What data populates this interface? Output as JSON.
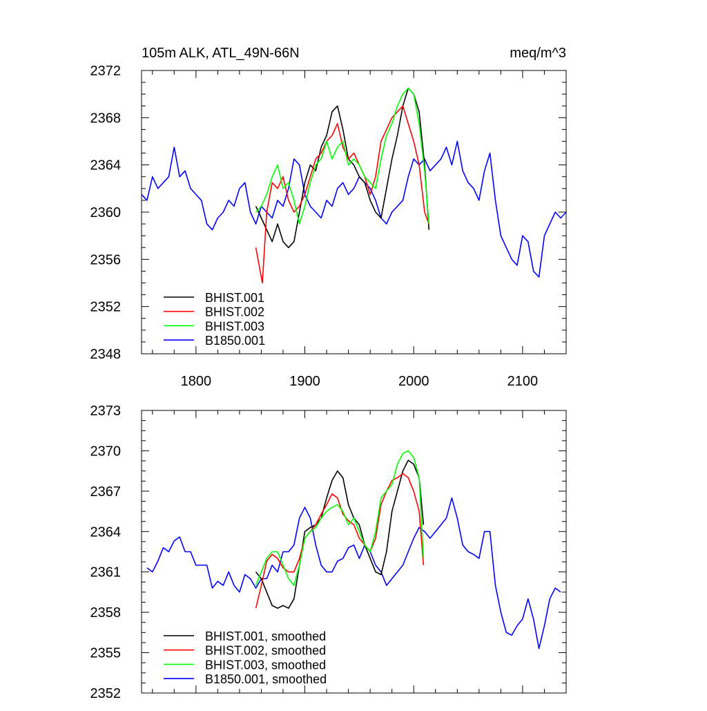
{
  "chart_data": [
    {
      "type": "line",
      "title_left": "105m ALK, ATL_49N-66N",
      "title_right": "meq/m^3",
      "xlim": [
        1750,
        2140
      ],
      "ylim": [
        2348,
        2372
      ],
      "xticks": [
        1800,
        1900,
        2000,
        2100
      ],
      "xtick_labels": [
        "1800",
        "1900",
        "2000",
        "2100"
      ],
      "yticks": [
        2348,
        2352,
        2356,
        2360,
        2364,
        2368,
        2372
      ],
      "ytick_labels": [
        "2348",
        "2352",
        "2356",
        "2360",
        "2364",
        "2368",
        "2372"
      ],
      "legend": "bottom-left",
      "series": [
        {
          "name": "BHIST.001",
          "color": "#000000",
          "x": [
            1855,
            1860,
            1865,
            1870,
            1875,
            1880,
            1885,
            1890,
            1895,
            1900,
            1905,
            1910,
            1915,
            1920,
            1925,
            1930,
            1935,
            1940,
            1945,
            1950,
            1955,
            1960,
            1965,
            1970,
            1975,
            1980,
            1985,
            1990,
            1995,
            2000,
            2005,
            2010,
            2014
          ],
          "y": [
            2360.5,
            2359.5,
            2358.5,
            2357.5,
            2359,
            2357.5,
            2357,
            2357.5,
            2360,
            2362.5,
            2364,
            2363.5,
            2365.5,
            2366.5,
            2368.5,
            2369,
            2367,
            2364.5,
            2364,
            2363,
            2362.5,
            2361,
            2360,
            2359.5,
            2362,
            2364.5,
            2366.5,
            2369,
            2370.5,
            2370,
            2368.5,
            2364,
            2358.5
          ]
        },
        {
          "name": "BHIST.002",
          "color": "#ff0000",
          "x": [
            1855,
            1858,
            1861,
            1865,
            1870,
            1875,
            1880,
            1885,
            1890,
            1895,
            1900,
            1905,
            1910,
            1915,
            1920,
            1925,
            1930,
            1935,
            1940,
            1945,
            1950,
            1955,
            1960,
            1965,
            1970,
            1975,
            1980,
            1985,
            1990,
            1995,
            2000,
            2005,
            2010,
            2014
          ],
          "y": [
            2357,
            2355.5,
            2354,
            2360,
            2362.5,
            2362,
            2363,
            2361,
            2360,
            2360.5,
            2361.5,
            2363,
            2364.5,
            2365,
            2366,
            2366.5,
            2367.5,
            2365.5,
            2364.5,
            2365,
            2364,
            2363,
            2361.5,
            2363,
            2366,
            2367,
            2368,
            2368.5,
            2369,
            2367.5,
            2366,
            2364,
            2360,
            2359
          ]
        },
        {
          "name": "BHIST.003",
          "color": "#00ff00",
          "x": [
            1855,
            1860,
            1865,
            1870,
            1875,
            1880,
            1885,
            1890,
            1895,
            1900,
            1905,
            1910,
            1915,
            1920,
            1925,
            1930,
            1935,
            1940,
            1945,
            1950,
            1955,
            1960,
            1965,
            1970,
            1975,
            1980,
            1985,
            1990,
            1995,
            2000,
            2005,
            2010,
            2014
          ],
          "y": [
            2360,
            2360.5,
            2361.5,
            2363,
            2364,
            2362,
            2362.5,
            2361,
            2359,
            2360.5,
            2362.5,
            2364,
            2364.5,
            2366,
            2364.5,
            2365.5,
            2366,
            2364,
            2364.5,
            2364,
            2363,
            2362.5,
            2362,
            2364.5,
            2366.5,
            2367.5,
            2369,
            2370,
            2370.5,
            2370,
            2367.5,
            2363.5,
            2359
          ]
        },
        {
          "name": "B1850.001",
          "color": "#0000ff",
          "x": [
            1750,
            1755,
            1760,
            1765,
            1770,
            1775,
            1780,
            1785,
            1790,
            1795,
            1800,
            1805,
            1810,
            1815,
            1820,
            1825,
            1830,
            1835,
            1840,
            1845,
            1850,
            1855,
            1860,
            1865,
            1870,
            1875,
            1880,
            1885,
            1890,
            1895,
            1900,
            1905,
            1910,
            1915,
            1920,
            1925,
            1930,
            1935,
            1940,
            1945,
            1950,
            1955,
            1960,
            1965,
            1970,
            1975,
            1980,
            1985,
            1990,
            1995,
            2000,
            2005,
            2010,
            2015,
            2020,
            2025,
            2030,
            2035,
            2040,
            2045,
            2050,
            2055,
            2060,
            2065,
            2070,
            2075,
            2080,
            2085,
            2090,
            2095,
            2100,
            2105,
            2110,
            2115,
            2120,
            2125,
            2130,
            2135,
            2140
          ],
          "y": [
            2361.5,
            2361,
            2363,
            2362,
            2362.5,
            2363,
            2365.5,
            2363,
            2363.5,
            2362,
            2361.5,
            2361,
            2359,
            2358.5,
            2359.5,
            2360,
            2361,
            2360.5,
            2362,
            2362.5,
            2360,
            2359,
            2360.5,
            2360,
            2359.5,
            2361,
            2360.5,
            2362,
            2364.5,
            2364,
            2361.5,
            2360.5,
            2360,
            2359.5,
            2361,
            2360.5,
            2362,
            2362.5,
            2361.5,
            2362,
            2363,
            2362.5,
            2362,
            2361,
            2359.5,
            2359,
            2360,
            2360.5,
            2361,
            2363,
            2364.5,
            2364,
            2364.5,
            2363.5,
            2364,
            2364.5,
            2365.5,
            2364,
            2366,
            2363.5,
            2362.5,
            2362,
            2361,
            2363.5,
            2365,
            2361,
            2358,
            2357,
            2356,
            2355.5,
            2358,
            2357.5,
            2355,
            2354.5,
            2358,
            2359,
            2360,
            2359.5,
            2360
          ]
        }
      ]
    },
    {
      "type": "line",
      "xlim": [
        1750,
        2140
      ],
      "ylim": [
        2352,
        2373
      ],
      "xticks": [
        1800,
        1900,
        2000,
        2100
      ],
      "yticks": [
        2352,
        2355,
        2358,
        2361,
        2364,
        2367,
        2370,
        2373
      ],
      "ytick_labels": [
        "2352",
        "2355",
        "2358",
        "2361",
        "2364",
        "2367",
        "2370",
        "2373"
      ],
      "legend": "bottom-left",
      "series": [
        {
          "name": "BHIST.001, smoothed",
          "color": "#000000",
          "x": [
            1855,
            1860,
            1865,
            1870,
            1875,
            1880,
            1885,
            1890,
            1895,
            1900,
            1905,
            1910,
            1915,
            1920,
            1925,
            1930,
            1935,
            1940,
            1945,
            1950,
            1955,
            1960,
            1965,
            1970,
            1975,
            1980,
            1985,
            1990,
            1995,
            2000,
            2005,
            2009
          ],
          "y": [
            2361,
            2360.5,
            2359.5,
            2358.5,
            2358.3,
            2358.5,
            2358.3,
            2359,
            2361.5,
            2364,
            2364.3,
            2364.5,
            2365,
            2366.5,
            2367.8,
            2368.5,
            2368,
            2366,
            2365,
            2364.5,
            2363,
            2362,
            2361,
            2360.8,
            2362.5,
            2365.5,
            2367,
            2368.5,
            2369.3,
            2369,
            2368,
            2364.5
          ]
        },
        {
          "name": "BHIST.002, smoothed",
          "color": "#ff0000",
          "x": [
            1855,
            1860,
            1865,
            1870,
            1875,
            1880,
            1885,
            1890,
            1895,
            1900,
            1905,
            1910,
            1915,
            1920,
            1925,
            1930,
            1935,
            1940,
            1945,
            1950,
            1955,
            1960,
            1965,
            1970,
            1975,
            1980,
            1985,
            1990,
            1995,
            2000,
            2005,
            2009
          ],
          "y": [
            2358.3,
            2360,
            2361.8,
            2362.3,
            2362,
            2361.3,
            2361,
            2361,
            2362,
            2363.5,
            2364,
            2364.5,
            2365.3,
            2366,
            2366.8,
            2366.5,
            2365.3,
            2364.8,
            2364.5,
            2363.5,
            2363,
            2362.5,
            2363.5,
            2366,
            2367,
            2367.8,
            2368,
            2368.3,
            2368,
            2367,
            2365.5,
            2361.5
          ]
        },
        {
          "name": "BHIST.003, smoothed",
          "color": "#00ff00",
          "x": [
            1855,
            1860,
            1865,
            1870,
            1875,
            1880,
            1885,
            1890,
            1895,
            1900,
            1905,
            1910,
            1915,
            1920,
            1925,
            1930,
            1935,
            1940,
            1945,
            1950,
            1955,
            1960,
            1965,
            1970,
            1975,
            1980,
            1985,
            1990,
            1995,
            2000,
            2005,
            2009
          ],
          "y": [
            2360,
            2361,
            2362,
            2362.5,
            2362.5,
            2361.5,
            2360.5,
            2360,
            2361.5,
            2363.5,
            2364,
            2364.3,
            2365,
            2365.5,
            2365.8,
            2366,
            2365.5,
            2364.5,
            2365,
            2364,
            2363,
            2362.5,
            2364,
            2366.5,
            2367,
            2367.5,
            2369,
            2369.8,
            2370,
            2369.5,
            2368,
            2362
          ]
        },
        {
          "name": "B1850.001, smoothed",
          "color": "#0000ff",
          "x": [
            1755,
            1760,
            1765,
            1770,
            1775,
            1780,
            1785,
            1790,
            1795,
            1800,
            1805,
            1810,
            1815,
            1820,
            1825,
            1830,
            1835,
            1840,
            1845,
            1850,
            1855,
            1860,
            1865,
            1870,
            1875,
            1880,
            1885,
            1890,
            1895,
            1900,
            1905,
            1910,
            1915,
            1920,
            1925,
            1930,
            1935,
            1940,
            1945,
            1950,
            1955,
            1960,
            1965,
            1970,
            1975,
            1980,
            1985,
            1990,
            1995,
            2000,
            2005,
            2010,
            2015,
            2020,
            2025,
            2030,
            2035,
            2040,
            2045,
            2050,
            2055,
            2060,
            2065,
            2070,
            2075,
            2080,
            2085,
            2090,
            2095,
            2100,
            2105,
            2110,
            2115,
            2120,
            2125,
            2130,
            2135
          ],
          "y": [
            2361.3,
            2361,
            2361.8,
            2362.8,
            2362.5,
            2363.3,
            2363.6,
            2362.5,
            2362.5,
            2361.5,
            2361.5,
            2361.5,
            2359.8,
            2360.3,
            2360,
            2361,
            2360,
            2359.5,
            2360.8,
            2360.5,
            2359.8,
            2360.5,
            2360.5,
            2361.5,
            2361,
            2362.5,
            2362.5,
            2363,
            2365,
            2365.8,
            2365,
            2363,
            2361.5,
            2361,
            2361,
            2361.8,
            2362,
            2362.8,
            2363,
            2362,
            2363,
            2362.5,
            2361.5,
            2361,
            2360,
            2360.5,
            2361,
            2361.5,
            2362.5,
            2363.5,
            2364.3,
            2364,
            2363.5,
            2364,
            2364.5,
            2365,
            2366.5,
            2365,
            2363,
            2362.5,
            2362.3,
            2362,
            2364,
            2364,
            2360,
            2358,
            2356.5,
            2356.3,
            2357,
            2357.5,
            2359,
            2357.5,
            2355.3,
            2357,
            2359,
            2359.8,
            2359.5
          ]
        }
      ]
    }
  ]
}
